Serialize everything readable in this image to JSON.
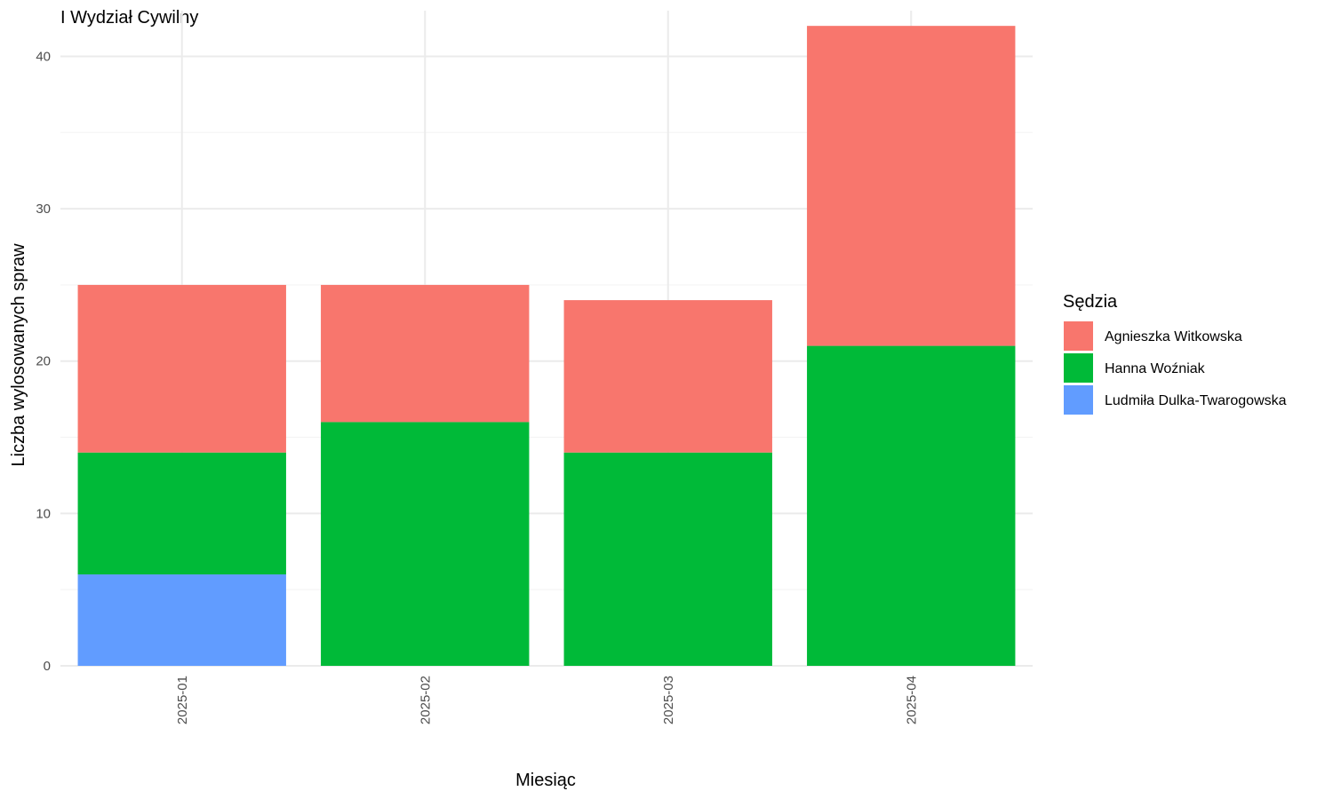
{
  "chart_data": {
    "type": "bar",
    "stacked": true,
    "title": "I Wydział Cywilny",
    "xlabel": "Miesiąc",
    "ylabel": "Liczba wylosowanych spraw",
    "categories": [
      "2025-01",
      "2025-02",
      "2025-03",
      "2025-04"
    ],
    "ylim": [
      0,
      43
    ],
    "yticks": [
      0,
      10,
      20,
      30,
      40
    ],
    "grid": true,
    "legend": {
      "title": "Sędzia",
      "placement": "right"
    },
    "series": [
      {
        "name": "Ludmiła Dulka-Twarogowska",
        "color": "#619CFF",
        "values": [
          6,
          0,
          0,
          0
        ]
      },
      {
        "name": "Hanna Woźniak",
        "color": "#00BA38",
        "values": [
          8,
          16,
          14,
          21
        ]
      },
      {
        "name": "Agnieszka Witkowska",
        "color": "#F8766D",
        "values": [
          11,
          9,
          10,
          21
        ]
      }
    ],
    "legend_order": [
      "Agnieszka Witkowska",
      "Hanna Woźniak",
      "Ludmiła Dulka-Twarogowska"
    ]
  }
}
